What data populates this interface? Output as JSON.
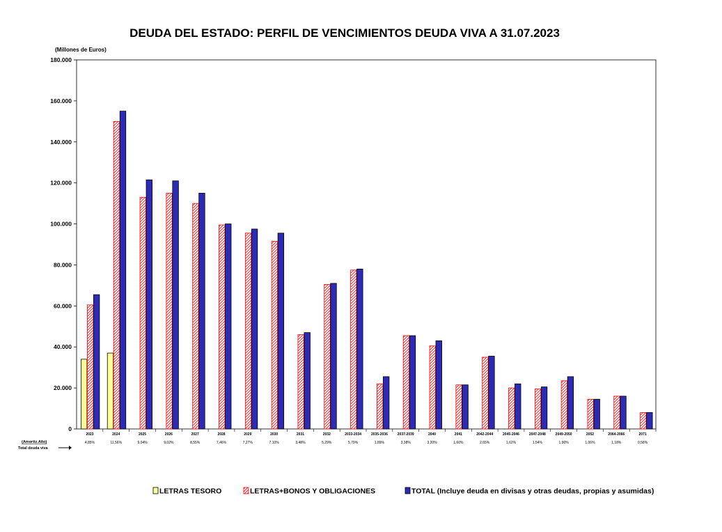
{
  "chart_data": {
    "type": "bar",
    "title": "DEUDA DEL ESTADO: PERFIL DE VENCIMIENTOS DEUDA VIVA A 31.07.2023",
    "ylabel": "(Millones  de Euros)",
    "ylim": [
      0,
      180000
    ],
    "yticks": [
      "0",
      "20.000",
      "40.000",
      "60.000",
      "80.000",
      "100.000",
      "120.000",
      "140.000",
      "160.000",
      "180.000"
    ],
    "grid": false,
    "legend_position": "bottom",
    "categories": [
      "2023",
      "2024",
      "2025",
      "2026",
      "2027",
      "2028",
      "2029",
      "2030",
      "2031",
      "2032",
      "2033-2034",
      "2035-2036",
      "2037-2039",
      "2040",
      "2041",
      "2042-2044",
      "2045-2046",
      "2047-2048",
      "2049-2050",
      "2052",
      "2064-2066",
      "2071"
    ],
    "percentages": [
      "4,85%",
      "11,56%",
      "9,04%",
      "9,02%",
      "8,55%",
      "7,46%",
      "7,27%",
      "7,10%",
      "3,48%",
      "5,29%",
      "5,79%",
      "1,89%",
      "3,38%",
      "3,20%",
      "1,60%",
      "2,65%",
      "1,62%",
      "1,54%",
      "1,90%",
      "1,06%",
      "1,18%",
      "0,58%"
    ],
    "side_label_1": "(Amortiz.Año)",
    "side_label_2": "Total deuda viva",
    "series": [
      {
        "name": "LETRAS TESORO",
        "color": "#ffff99",
        "pattern": "solid",
        "values": [
          34000,
          37000,
          0,
          0,
          0,
          0,
          0,
          0,
          0,
          0,
          0,
          0,
          0,
          0,
          0,
          0,
          0,
          0,
          0,
          0,
          0,
          0
        ]
      },
      {
        "name": "LETRAS+BONOS Y OBLIGACIONES",
        "color": "#ff0000",
        "pattern": "hatch",
        "values": [
          60500,
          150000,
          113000,
          115000,
          110000,
          99500,
          95500,
          91500,
          46000,
          70500,
          77500,
          22000,
          45500,
          40500,
          21500,
          35000,
          20000,
          19500,
          23500,
          14500,
          16000,
          8000
        ]
      },
      {
        "name": "TOTAL (Incluye deuda en divisas y otras deudas, propias y asumidas)",
        "color": "#2b2bb5",
        "pattern": "solid",
        "values": [
          65500,
          155000,
          121500,
          121000,
          115000,
          100000,
          97500,
          95500,
          47000,
          71000,
          78000,
          25500,
          45500,
          43000,
          21500,
          35500,
          22000,
          20500,
          25500,
          14500,
          16000,
          8000
        ]
      }
    ]
  }
}
